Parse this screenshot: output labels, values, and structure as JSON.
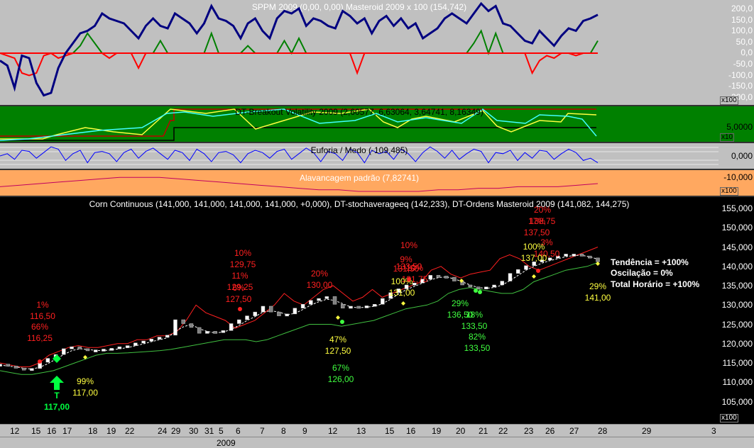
{
  "panes": {
    "sppm": {
      "title": "SPPM 2009 (0,00, 0,00) Masteroid 2009 x 100 (154,742)",
      "ticks": [
        "200,0",
        "150,0",
        "100,0",
        "50,0",
        "0,0",
        "-50,0",
        "-100,0",
        "-150,0",
        "-200,0"
      ],
      "multiplier": "x100",
      "colors": {
        "bg": "#c0c0c0",
        "line": "#000080",
        "pos": "#008000",
        "neg": "#ff0000"
      }
    },
    "breakout": {
      "title": "DT-Breakout Volatility 2009 (2,60577, 6,63064, 3,64741, 8,16349)",
      "ticks": [
        "5,0000"
      ],
      "multiplier": "x10",
      "colors": {
        "bg": "#008000"
      }
    },
    "euforia": {
      "title": "Euforia / Medo (-109,485)",
      "ticks": [
        "0,000",
        "-10,000"
      ],
      "colors": {
        "bg": "#c0c0c0",
        "line": "#0000ff"
      }
    },
    "alavancagem": {
      "title": "Alavancagem padrão (7,82741)",
      "multiplier": "x100",
      "colors": {
        "bg": "#ffa860",
        "line": "#c00060"
      }
    },
    "main": {
      "title": "Corn Continuous (141,000, 141,000, 141,000, 141,000, +0,000), DT-stochaverageeq (142,233), DT-Ordens Masteroid 2009 (141,082, 144,275)",
      "ticks": [
        "155,000",
        "150,000",
        "145,000",
        "140,000",
        "135,000",
        "130,000",
        "125,000",
        "120,000",
        "115,000",
        "110,000",
        "105,000"
      ],
      "multiplier": "x100",
      "status": {
        "tendencia": "Tendência = +100%",
        "oscilacao": "Oscilação = 0%",
        "total": "Total Horário = +100%"
      },
      "annotations_red": [
        "1%",
        "116,50",
        "66%",
        "116,25",
        "10%",
        "129,75",
        "11%",
        "129,25",
        "6%",
        "127,50",
        "20%",
        "130,00",
        "10%",
        "133,50",
        "9%",
        "131,50",
        "10%",
        "131,75",
        "20%",
        "138,75",
        "17%",
        "137,50",
        "3%",
        "140,50"
      ],
      "annotations_yellow": [
        "99%",
        "117,00",
        "47%",
        "127,50",
        "100%",
        "131,00",
        "100%",
        "137,00",
        "29%",
        "141,00"
      ],
      "annotations_green": [
        "67%",
        "126,00",
        "29%",
        "136,50",
        "18%",
        "133,50",
        "82%",
        "133,50"
      ],
      "entry_marker": {
        "label": "T",
        "price": "117,00"
      }
    }
  },
  "x_axis": {
    "day_labels": [
      "12",
      "15",
      "16",
      "17",
      "18",
      "19",
      "22",
      "24",
      "29",
      "30",
      "31",
      "5",
      "6",
      "7",
      "8",
      "9",
      "12",
      "13",
      "15",
      "16",
      "19",
      "20",
      "21",
      "22",
      "23",
      "26",
      "27",
      "28",
      "29",
      "3"
    ],
    "year_label": "2009"
  },
  "chart_data": [
    {
      "type": "line",
      "title": "SPPM 2009 (0,00, 0,00) Masteroid 2009 x 100 (154,742)",
      "ylim": [
        -200,
        200
      ],
      "series": [
        {
          "name": "Masteroid 2009 x 100",
          "values": [
            -30,
            -50,
            -140,
            -10,
            -20,
            -120,
            -170,
            -160,
            -60,
            0,
            40,
            80,
            90,
            110,
            160,
            140,
            130,
            120,
            90,
            60,
            110,
            140,
            110,
            100,
            160,
            140,
            120,
            80,
            120,
            190,
            140,
            130,
            110,
            60,
            120,
            140,
            90,
            60,
            140,
            170,
            160,
            180,
            110,
            140,
            130,
            110,
            100,
            170,
            150,
            120,
            140,
            80,
            130,
            150,
            110,
            140,
            100,
            120,
            60,
            80,
            100,
            140,
            160,
            140,
            120,
            160,
            200,
            170,
            190,
            120,
            110,
            80,
            50,
            40,
            90,
            60,
            30,
            70,
            100,
            90,
            130,
            140,
            155
          ]
        },
        {
          "name": "SPPM positive",
          "values": [
            0,
            0,
            0,
            0,
            0,
            0,
            0,
            0,
            0,
            0,
            0,
            30,
            80,
            40,
            0,
            0,
            0,
            0,
            0,
            0,
            0,
            0,
            50,
            0,
            0,
            0,
            0,
            0,
            0,
            80,
            0,
            0,
            0,
            0,
            30,
            0,
            0,
            0,
            0,
            50,
            0,
            60,
            0,
            0,
            0,
            0,
            0,
            0,
            0,
            0,
            0,
            0,
            0,
            0,
            0,
            0,
            0,
            0,
            0,
            0,
            0,
            0,
            0,
            0,
            0,
            40,
            90,
            0,
            80,
            0,
            0,
            0,
            0,
            0,
            0,
            0,
            0,
            0,
            0,
            0,
            0,
            0,
            50
          ]
        },
        {
          "name": "SPPM negative",
          "values": [
            0,
            -10,
            -20,
            -80,
            -90,
            -80,
            -10,
            0,
            -20,
            -10,
            0,
            0,
            0,
            0,
            0,
            -20,
            0,
            0,
            0,
            -60,
            0,
            0,
            0,
            0,
            0,
            0,
            0,
            0,
            0,
            0,
            0,
            0,
            0,
            0,
            0,
            0,
            0,
            0,
            0,
            0,
            0,
            0,
            0,
            0,
            0,
            0,
            0,
            0,
            0,
            -80,
            0,
            0,
            0,
            0,
            0,
            0,
            0,
            0,
            0,
            0,
            0,
            0,
            0,
            0,
            0,
            0,
            0,
            0,
            0,
            0,
            0,
            0,
            0,
            -80,
            -30,
            -10,
            -20,
            0,
            0,
            -10,
            0,
            0,
            0
          ]
        }
      ]
    },
    {
      "type": "line",
      "title": "Euforia / Medo (-109,485)",
      "series": [
        {
          "name": "Euforia / Medo",
          "values": [
            0,
            2,
            -3,
            5,
            4,
            -2,
            3,
            8,
            6,
            -4,
            2,
            5,
            -6,
            3,
            4,
            2,
            -5,
            3,
            6,
            -2,
            4,
            7,
            2,
            -3,
            5,
            3,
            -4,
            6,
            2,
            -5,
            3,
            4,
            1,
            -6,
            2,
            5,
            3,
            -2,
            4,
            6,
            -3,
            2,
            7,
            3,
            -5,
            4,
            2,
            -4,
            6,
            3,
            -6,
            5,
            2,
            4,
            -3,
            6,
            2,
            -5,
            3,
            8,
            4,
            -2,
            5,
            -3,
            2,
            6,
            4,
            -6,
            3,
            2,
            5,
            -4,
            3,
            -2,
            5,
            4,
            -3,
            2,
            6,
            3,
            -4,
            -2,
            -6
          ]
        }
      ]
    },
    {
      "type": "line",
      "title": "Alavancagem padrão (7,82741)",
      "series": [
        {
          "name": "Alavancagem padrão",
          "values": [
            3,
            4,
            5,
            6,
            7,
            8,
            9,
            9,
            9,
            8,
            7,
            6,
            5,
            4,
            3,
            2,
            1,
            1,
            0,
            0,
            0,
            0,
            1,
            1,
            2,
            2,
            3,
            3,
            3,
            4,
            5
          ]
        }
      ]
    },
    {
      "type": "line",
      "title": "Corn Continuous (141,000, 141,000, 141,000, 141,000, +0,000), DT-stochaverageeq (142,233), DT-Ordens Masteroid 2009 (141,082, 144,275)",
      "ylim": [
        102.5,
        157.5
      ],
      "series": [
        {
          "name": "Corn Continuous",
          "values": [
            114.5,
            114,
            113.5,
            113.3,
            113.4,
            115,
            116,
            117,
            118.5,
            119,
            118.5,
            118,
            118.2,
            118.4,
            118.6,
            119,
            119.3,
            120,
            120.5,
            121,
            121.5,
            122,
            126,
            125,
            124,
            122.5,
            123,
            122.8,
            123.2,
            125,
            126,
            127,
            128,
            129.5,
            128,
            127,
            127.5,
            129,
            130,
            131,
            131.5,
            132,
            130,
            129,
            129.5,
            129.3,
            129.6,
            130,
            131.5,
            133,
            134,
            135,
            135.5,
            136.5,
            137.5,
            137.3,
            137,
            136,
            135,
            134.5,
            134,
            134.5,
            135,
            136,
            138,
            139,
            140,
            141,
            141.5,
            142,
            142.5,
            143,
            143,
            142.5,
            142,
            141
          ]
        },
        {
          "name": "DT-Ordens upper",
          "values": [
            115,
            114.5,
            114,
            114,
            115,
            117,
            118,
            119,
            119.5,
            119,
            119,
            119.5,
            120,
            120,
            121,
            121,
            122,
            122,
            123,
            126,
            130,
            128,
            127,
            126,
            124,
            125,
            126,
            128,
            130,
            133,
            131,
            130,
            132,
            134,
            135,
            133,
            131,
            132,
            134,
            132,
            133,
            134,
            135,
            136,
            139,
            140,
            138,
            137,
            138,
            138.5,
            139,
            142,
            143,
            142,
            140,
            139,
            140,
            141,
            142,
            143,
            144,
            145
          ]
        },
        {
          "name": "DT-Ordens lower",
          "values": [
            113,
            112.5,
            112,
            112,
            112.5,
            113,
            114,
            115,
            116,
            117,
            117.5,
            117.5,
            117.6,
            117.8,
            118,
            118.2,
            118.5,
            119,
            119.5,
            120,
            120.5,
            121,
            121,
            121,
            120.5,
            121,
            122,
            123,
            124,
            125,
            125,
            125,
            124.5,
            125,
            125.5,
            126,
            127,
            128,
            129,
            129.5,
            130,
            131,
            133,
            134,
            134.5,
            134,
            133.5,
            133,
            133,
            134,
            136,
            137,
            138,
            139,
            139.5,
            140,
            141
          ]
        }
      ]
    }
  ]
}
